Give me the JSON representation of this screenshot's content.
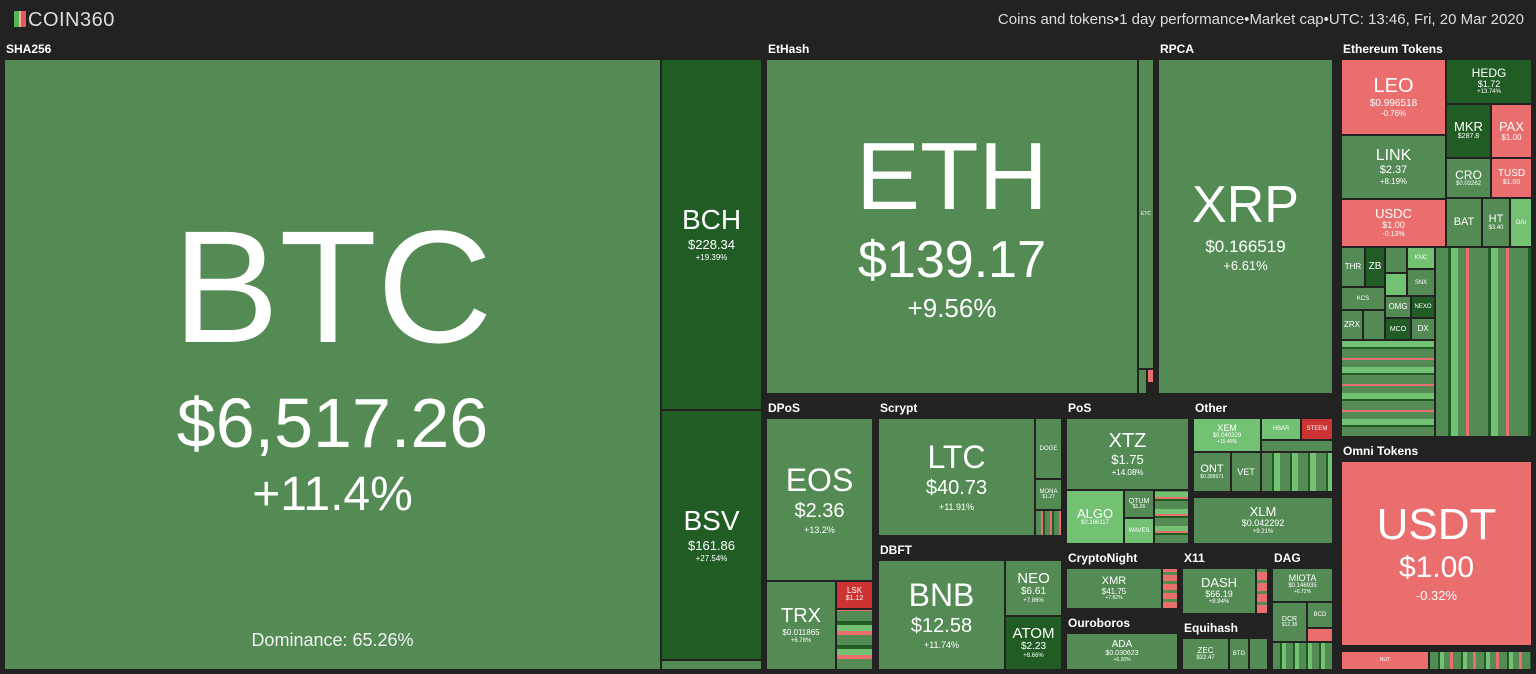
{
  "header": {
    "logo": "COIN360",
    "filters": [
      "Coins and tokens",
      "1 day performance",
      "Market cap",
      "UTC: 13:46, Fri, 20 Mar 2020"
    ],
    "separator": "•"
  },
  "sections": {
    "sha256": "SHA256",
    "ethash": "EtHash",
    "rpca": "RPCA",
    "eth_tokens": "Ethereum Tokens",
    "dpos": "DPoS",
    "scrypt": "Scrypt",
    "pos": "PoS",
    "other": "Other",
    "dbft": "DBFT",
    "omni": "Omni Tokens",
    "cryptonight": "CryptoNight",
    "x11": "X11",
    "dag": "DAG",
    "ouroboros": "Ouroboros",
    "equihash": "Equihash"
  },
  "coins": {
    "btc": {
      "sym": "BTC",
      "price": "$6,517.26",
      "change": "+11.4%",
      "dominance": "Dominance: 65.26%"
    },
    "bch": {
      "sym": "BCH",
      "price": "$228.34",
      "change": "+19.39%"
    },
    "bsv": {
      "sym": "BSV",
      "price": "$161.86",
      "change": "+27.54%"
    },
    "eth": {
      "sym": "ETH",
      "price": "$139.17",
      "change": "+9.56%"
    },
    "etc": {
      "sym": "ETC"
    },
    "xrp": {
      "sym": "XRP",
      "price": "$0.166519",
      "change": "+6.61%"
    },
    "leo": {
      "sym": "LEO",
      "price": "$0.996518",
      "change": "-0.76%"
    },
    "hedg": {
      "sym": "HEDG",
      "price": "$1.72",
      "change": "+13.74%"
    },
    "mkr": {
      "sym": "MKR",
      "price": "$287.8"
    },
    "pax": {
      "sym": "PAX",
      "price": "$1.00"
    },
    "link": {
      "sym": "LINK",
      "price": "$2.37",
      "change": "+8.19%"
    },
    "cro": {
      "sym": "CRO",
      "price": "$0.03262"
    },
    "tusd": {
      "sym": "TUSD",
      "price": "$1.00"
    },
    "usdc": {
      "sym": "USDC",
      "price": "$1.00",
      "change": "-0.13%"
    },
    "bat": {
      "sym": "BAT"
    },
    "ht": {
      "sym": "HT",
      "price": "$3.40"
    },
    "dai": {
      "sym": "DAI"
    },
    "thr": {
      "sym": "THR"
    },
    "zb": {
      "sym": "ZB"
    },
    "knc": {
      "sym": "KNC"
    },
    "snx": {
      "sym": "SNX"
    },
    "kcs": {
      "sym": "KCS"
    },
    "omg": {
      "sym": "OMG"
    },
    "nexo": {
      "sym": "NEXO"
    },
    "zrx": {
      "sym": "ZRX"
    },
    "mco": {
      "sym": "MCO"
    },
    "dx": {
      "sym": "DX"
    },
    "eos": {
      "sym": "EOS",
      "price": "$2.36",
      "change": "+13.2%"
    },
    "trx": {
      "sym": "TRX",
      "price": "$0.011865",
      "change": "+6.78%"
    },
    "lsk": {
      "sym": "LSK",
      "price": "$1.12"
    },
    "ltc": {
      "sym": "LTC",
      "price": "$40.73",
      "change": "+11.91%"
    },
    "doge": {
      "sym": "DOGE"
    },
    "mona": {
      "sym": "MONA",
      "price": "$1.27"
    },
    "xtz": {
      "sym": "XTZ",
      "price": "$1.75",
      "change": "+14.08%"
    },
    "algo": {
      "sym": "ALGO",
      "price": "$0.166117"
    },
    "qtum": {
      "sym": "QTUM",
      "price": "$1.26"
    },
    "waves": {
      "sym": "WAVES"
    },
    "xem": {
      "sym": "XEM",
      "price": "$0.040329",
      "change": "+15.46%"
    },
    "hbar": {
      "sym": "HBAR"
    },
    "steem": {
      "sym": "STEEM"
    },
    "ont": {
      "sym": "ONT",
      "price": "$0.399971"
    },
    "vet": {
      "sym": "VET"
    },
    "xlm": {
      "sym": "XLM",
      "price": "$0.042292",
      "change": "+9.21%"
    },
    "bnb": {
      "sym": "BNB",
      "price": "$12.58",
      "change": "+11.74%"
    },
    "neo": {
      "sym": "NEO",
      "price": "$6.61",
      "change": "+7.86%"
    },
    "atom": {
      "sym": "ATOM",
      "price": "$2.23",
      "change": "+8.66%"
    },
    "xmr": {
      "sym": "XMR",
      "price": "$41.75",
      "change": "+7.82%"
    },
    "dash": {
      "sym": "DASH",
      "price": "$66.19",
      "change": "+8.94%"
    },
    "miota": {
      "sym": "MIOTA",
      "price": "$0.146935",
      "change": "+6.72%"
    },
    "dcr": {
      "sym": "DCR",
      "price": "$12.38"
    },
    "bcd": {
      "sym": "BCD"
    },
    "ada": {
      "sym": "ADA",
      "price": "$0.030623",
      "change": "+6.20%"
    },
    "zec": {
      "sym": "ZEC",
      "price": "$32.47"
    },
    "btg": {
      "sym": "BTG"
    },
    "usdt": {
      "sym": "USDT",
      "price": "$1.00",
      "change": "-0.32%"
    },
    "nut": {
      "sym": "NUT"
    }
  },
  "colors": {
    "green": "#548b54",
    "dark_green": "#225c25",
    "light_green": "#73c274",
    "red": "#ea6e6e",
    "dark_red": "#cc3333",
    "background": "#222222"
  }
}
